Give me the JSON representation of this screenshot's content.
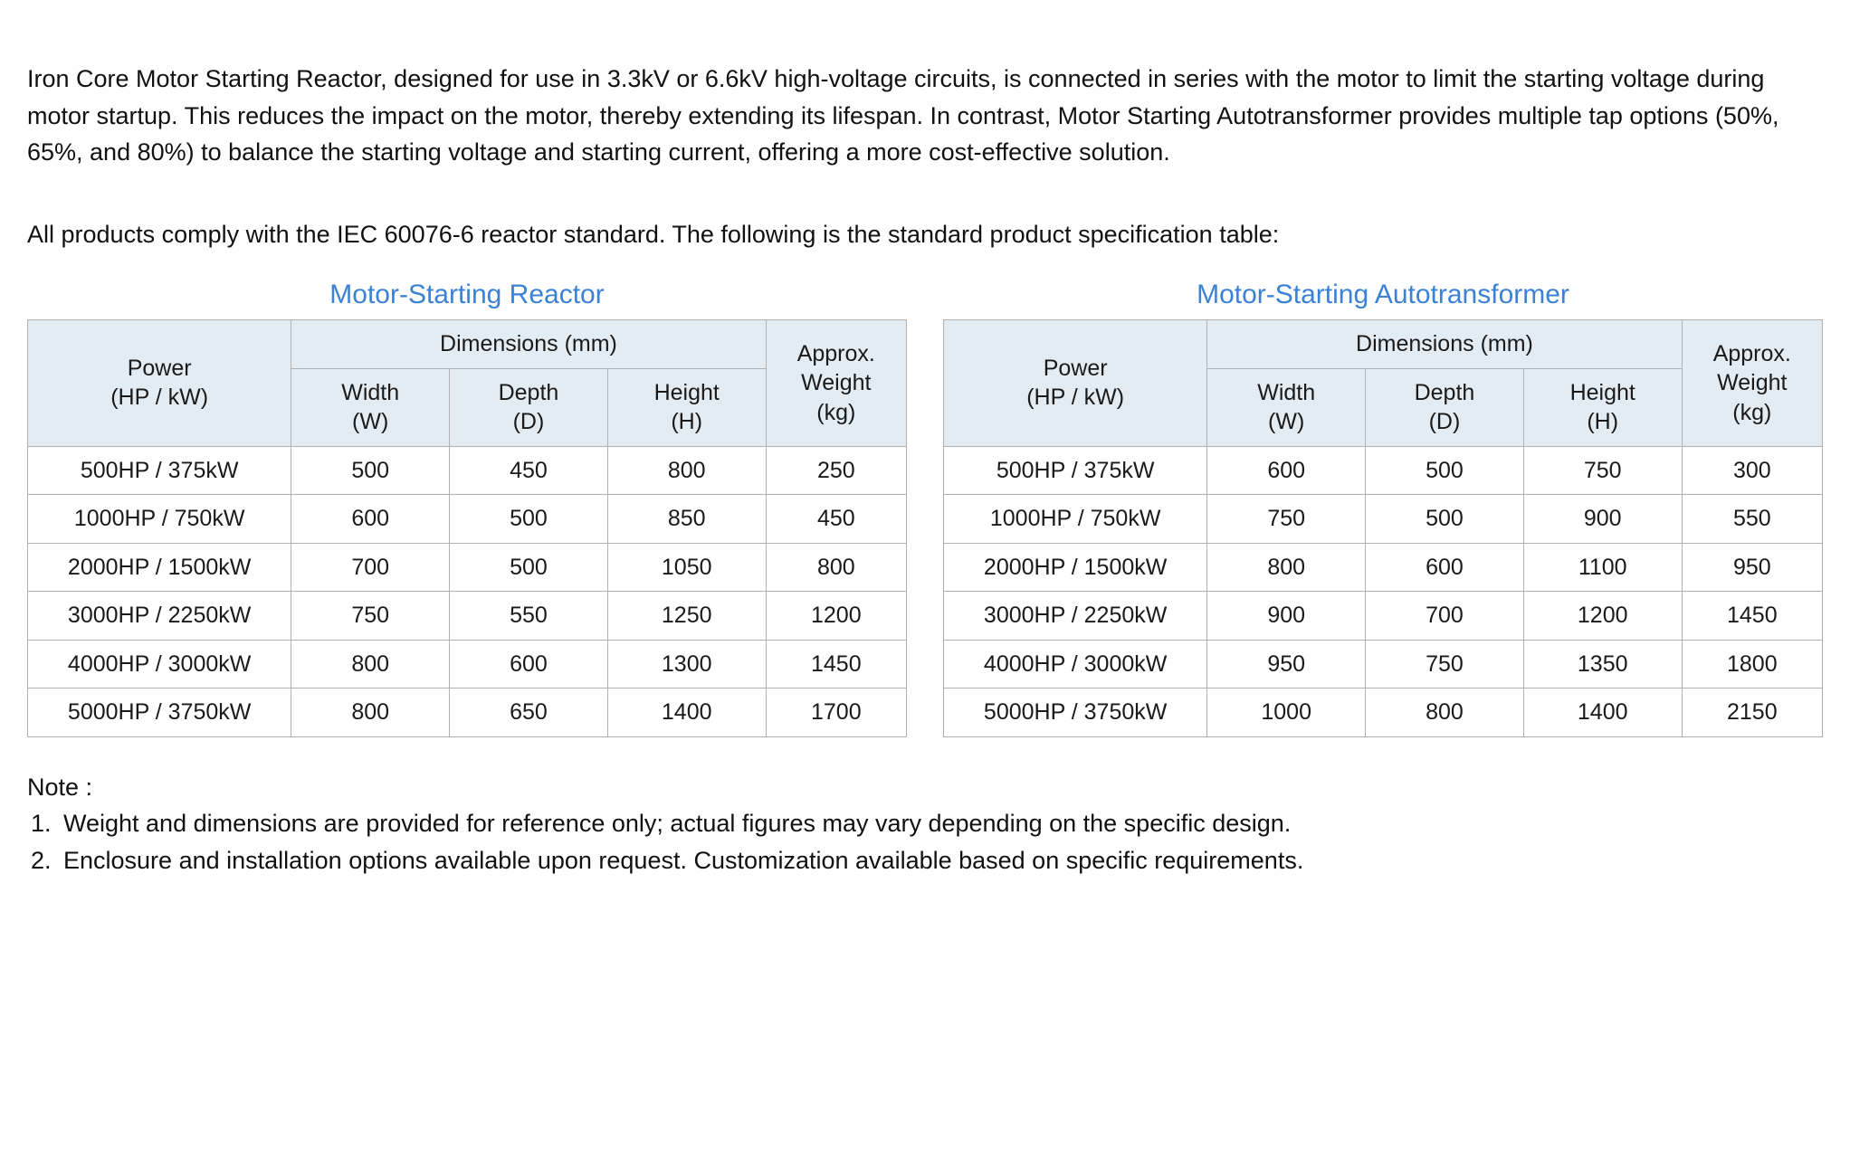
{
  "intro": "Iron Core Motor Starting Reactor, designed for use in 3.3kV or 6.6kV high-voltage circuits, is connected in series with the motor to limit the starting voltage during motor startup. This reduces the impact on the motor, thereby extending its lifespan. In contrast, Motor Starting Autotransformer provides multiple tap options (50%, 65%, and 80%) to balance the starting voltage and starting current, offering a more cost-effective solution.",
  "sub": "All products comply with the IEC 60076-6 reactor standard. The following is the standard product specification table:",
  "tables": {
    "reactor": {
      "title": "Motor-Starting Reactor",
      "header_power": "Power\n(HP / kW)",
      "header_dim_group": "Dimensions (mm)",
      "header_width": "Width\n(W)",
      "header_depth": "Depth\n(D)",
      "header_height": "Height\n(H)",
      "header_weight": "Approx.\nWeight\n(kg)",
      "rows": [
        [
          "500HP / 375kW",
          "500",
          "450",
          "800",
          "250"
        ],
        [
          "1000HP / 750kW",
          "600",
          "500",
          "850",
          "450"
        ],
        [
          "2000HP / 1500kW",
          "700",
          "500",
          "1050",
          "800"
        ],
        [
          "3000HP / 2250kW",
          "750",
          "550",
          "1250",
          "1200"
        ],
        [
          "4000HP / 3000kW",
          "800",
          "600",
          "1300",
          "1450"
        ],
        [
          "5000HP / 3750kW",
          "800",
          "650",
          "1400",
          "1700"
        ]
      ]
    },
    "autotransformer": {
      "title": "Motor-Starting Autotransformer",
      "header_power": "Power\n(HP / kW)",
      "header_dim_group": "Dimensions (mm)",
      "header_width": "Width\n(W)",
      "header_depth": "Depth\n(D)",
      "header_height": "Height\n(H)",
      "header_weight": "Approx.\nWeight\n(kg)",
      "rows": [
        [
          "500HP / 375kW",
          "600",
          "500",
          "750",
          "300"
        ],
        [
          "1000HP / 750kW",
          "750",
          "500",
          "900",
          "550"
        ],
        [
          "2000HP / 1500kW",
          "800",
          "600",
          "1100",
          "950"
        ],
        [
          "3000HP / 2250kW",
          "900",
          "700",
          "1200",
          "1450"
        ],
        [
          "4000HP / 3000kW",
          "950",
          "750",
          "1350",
          "1800"
        ],
        [
          "5000HP / 3750kW",
          "1000",
          "800",
          "1400",
          "2150"
        ]
      ]
    }
  },
  "notes": {
    "lead": "Note :",
    "items": [
      "Weight and dimensions are provided for reference only; actual figures may vary depending on the specific design.",
      "Enclosure and installation options available upon request. Customization available based on specific requirements."
    ]
  },
  "colors": {
    "title_color": "#3b82d6",
    "header_bg": "#e4ecf3",
    "border": "#b0b0b0",
    "text": "#111111"
  }
}
